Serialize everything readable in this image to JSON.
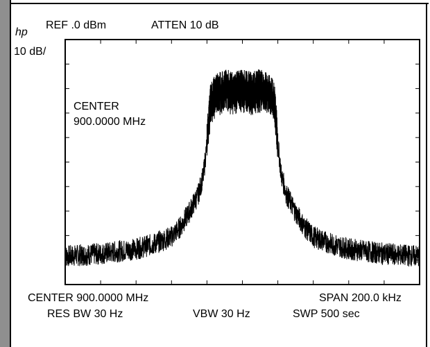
{
  "instrument": {
    "brand": "hp",
    "ref_label": "REF .0 dBm",
    "atten_label": "ATTEN 10 dB",
    "scale_label": "10 dB/",
    "center_label_line1": "CENTER",
    "center_label_line2": "900.0000 MHz",
    "center_bottom": "CENTER 900.0000  MHz",
    "span_label": "SPAN 200.0 kHz",
    "res_bw": "RES BW 30 Hz",
    "vbw": "VBW 30 Hz",
    "swp": "SWP 500 sec"
  },
  "chart_data": {
    "type": "line",
    "title": "",
    "xlabel": "",
    "ylabel": "",
    "x_units": "kHz offset from 900.0000 MHz center",
    "y_units": "dBm",
    "xlim": [
      -100,
      100
    ],
    "ylim": [
      -100,
      0
    ],
    "grid": "tick marks only (10 x 10 divisions)",
    "series": [
      {
        "values_description_x": [
          -100,
          -80,
          -60,
          -50,
          -40,
          -35,
          -30,
          -25,
          -22,
          -20,
          -18,
          -15,
          -10,
          -5,
          0,
          5,
          10,
          15,
          18,
          20,
          22,
          25,
          30,
          35,
          40,
          50,
          60,
          80,
          100
        ],
        "y": [
          -88,
          -87,
          -85,
          -83,
          -80,
          -76,
          -70,
          -63,
          -55,
          -42,
          -25,
          -22,
          -20,
          -21,
          -20,
          -21,
          -20,
          -22,
          -25,
          -42,
          -55,
          -63,
          -70,
          -76,
          -80,
          -83,
          -85,
          -87,
          -88
        ]
      }
    ],
    "colors": {
      "trace": "#000000",
      "background": "#ffffff",
      "bezel": "#8f8f8f"
    }
  }
}
